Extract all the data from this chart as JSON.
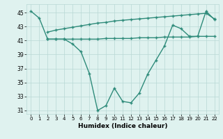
{
  "line1_x": [
    2,
    3,
    4,
    5,
    6,
    7,
    8,
    9,
    10,
    11,
    12,
    13,
    14,
    15,
    16,
    17,
    18,
    19,
    20,
    21,
    22
  ],
  "line1_y": [
    41.2,
    41.2,
    41.2,
    41.2,
    41.2,
    41.2,
    41.2,
    41.3,
    41.3,
    41.3,
    41.3,
    41.4,
    41.4,
    41.4,
    41.5,
    41.5,
    41.5,
    41.5,
    41.6,
    41.6,
    41.6
  ],
  "line2_x": [
    2,
    3,
    4,
    5,
    6,
    7,
    8,
    9,
    10,
    11,
    12,
    13,
    14,
    15,
    16,
    17,
    18,
    19,
    20,
    21,
    22
  ],
  "line2_y": [
    42.2,
    42.5,
    42.7,
    42.9,
    43.1,
    43.3,
    43.5,
    43.6,
    43.8,
    43.9,
    44.0,
    44.1,
    44.2,
    44.3,
    44.4,
    44.5,
    44.6,
    44.7,
    44.8,
    44.9,
    44.1
  ],
  "line3_x": [
    0,
    1,
    2,
    3,
    4,
    5,
    6,
    7,
    8,
    9,
    10,
    11,
    12,
    13,
    14,
    15,
    16,
    17,
    18,
    19,
    20,
    21,
    22
  ],
  "line3_y": [
    45.2,
    44.2,
    41.2,
    41.2,
    41.2,
    40.5,
    39.4,
    36.3,
    31.0,
    31.7,
    34.2,
    32.3,
    32.1,
    33.5,
    36.2,
    38.2,
    40.2,
    43.2,
    42.7,
    41.6,
    41.6,
    45.2,
    44.0
  ],
  "line_color": "#2e8b7a",
  "bg_color": "#dff2ef",
  "grid_color": "#b8d8d4",
  "xlabel": "Humidex (Indice chaleur)",
  "xlim": [
    -0.5,
    22.5
  ],
  "ylim": [
    30.5,
    46.2
  ],
  "xticks": [
    0,
    1,
    2,
    3,
    4,
    5,
    6,
    7,
    8,
    9,
    10,
    11,
    12,
    13,
    14,
    15,
    16,
    17,
    18,
    19,
    20,
    21,
    22
  ],
  "yticks": [
    31,
    33,
    35,
    37,
    39,
    41,
    43,
    45
  ]
}
